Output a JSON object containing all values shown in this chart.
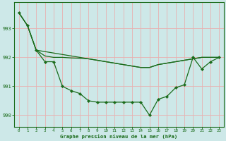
{
  "title": "Graphe pression niveau de la mer (hPa)",
  "background_color": "#cde8e8",
  "grid_color_v": "#e8b0b0",
  "grid_color_h": "#e8b0b0",
  "line_color": "#1a6b1a",
  "xlim": [
    -0.5,
    23.5
  ],
  "ylim": [
    989.6,
    993.9
  ],
  "yticks": [
    990,
    991,
    992,
    993
  ],
  "xticks": [
    0,
    1,
    2,
    3,
    4,
    5,
    6,
    7,
    8,
    9,
    10,
    11,
    12,
    13,
    14,
    15,
    16,
    17,
    18,
    19,
    20,
    21,
    22,
    23
  ],
  "line1_y": [
    993.55,
    993.1,
    992.25,
    992.2,
    992.15,
    992.1,
    992.05,
    992.0,
    991.95,
    991.9,
    991.85,
    991.8,
    991.75,
    991.7,
    991.65,
    991.65,
    991.75,
    991.8,
    991.85,
    991.9,
    991.95,
    992.0,
    992.0,
    992.0
  ],
  "line2_y": [
    993.55,
    993.1,
    992.25,
    992.05,
    992.0,
    992.0,
    991.98,
    991.97,
    991.95,
    991.9,
    991.85,
    991.8,
    991.75,
    991.7,
    991.65,
    991.65,
    991.75,
    991.8,
    991.85,
    991.9,
    991.95,
    992.0,
    992.0,
    992.0
  ],
  "line3_y": [
    993.55,
    993.1,
    992.25,
    991.85,
    991.85,
    991.0,
    990.85,
    990.75,
    990.5,
    990.45,
    990.45,
    990.45,
    990.45,
    990.45,
    990.45,
    990.0,
    990.55,
    990.65,
    990.95,
    991.05,
    992.0,
    991.6,
    991.85,
    992.0
  ]
}
